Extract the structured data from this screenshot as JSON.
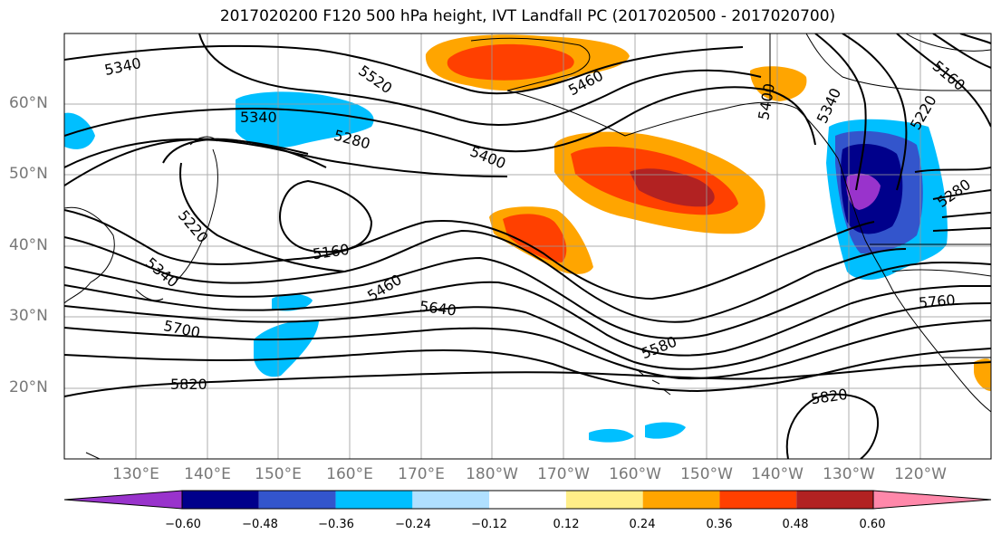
{
  "title": "2017020200 F120 500 hPa height, IVT Landfall PC (2017020500 - 2017020700)",
  "lat_labels": [
    "60°N",
    "50°N",
    "40°N",
    "30°N",
    "20°N"
  ],
  "lon_labels": [
    "130°E",
    "140°E",
    "150°E",
    "160°E",
    "170°E",
    "180°W",
    "170°W",
    "160°W",
    "150°W",
    "140°W",
    "130°W",
    "120°W"
  ],
  "contour_labels": [
    "5340",
    "5520",
    "5460",
    "5400",
    "5340",
    "5220",
    "5160",
    "5340",
    "5280",
    "5400",
    "5220",
    "5160",
    "5460",
    "5280",
    "5340",
    "5640",
    "5580",
    "5760",
    "5700",
    "5820",
    "5820"
  ],
  "colorbar": {
    "ticks": [
      "−0.60",
      "−0.48",
      "−0.36",
      "−0.24",
      "−0.12",
      "0.12",
      "0.24",
      "0.36",
      "0.48",
      "0.60"
    ],
    "colors": [
      "#9933cc",
      "#00008b",
      "#3355cc",
      "#00bfff",
      "#b0e0ff",
      "#ffffff",
      "#ffee88",
      "#ffa500",
      "#ff4000",
      "#b22222",
      "#ff88aa"
    ]
  }
}
